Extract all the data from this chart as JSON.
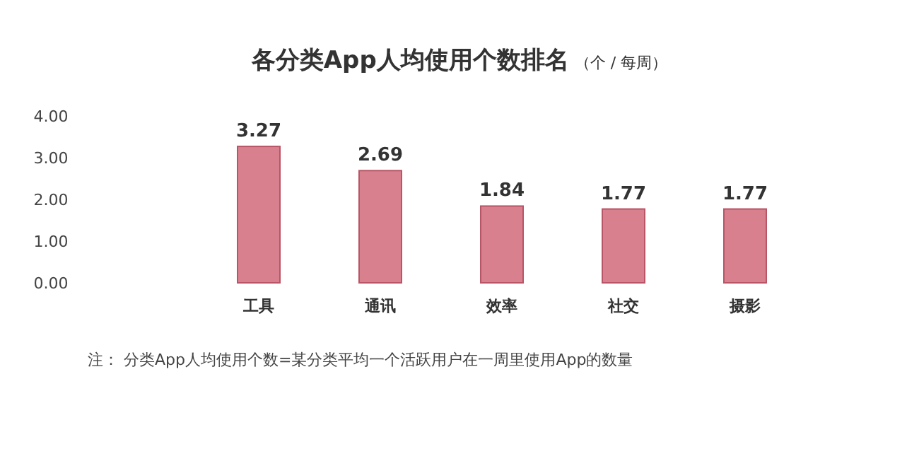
{
  "chart_data": {
    "type": "bar",
    "title": "各分类App人均使用个数排名",
    "subtitle": "（个 / 每周）",
    "categories": [
      "工具",
      "通讯",
      "效率",
      "社交",
      "摄影"
    ],
    "values": [
      3.27,
      2.69,
      1.84,
      1.77,
      1.77
    ],
    "color": "#d9808e",
    "ylim": [
      0,
      4
    ],
    "yticks": [
      {
        "value": 0,
        "label": "0.00"
      },
      {
        "value": 1,
        "label": "1.00"
      },
      {
        "value": 2,
        "label": "2.00"
      },
      {
        "value": 3,
        "label": "3.00"
      },
      {
        "value": 4,
        "label": "4.00"
      }
    ],
    "data_labels": true,
    "annotations": [
      "注：  分类App人均使用个数=某分类平均一个活跃用户在一周里使用App的数量"
    ]
  }
}
